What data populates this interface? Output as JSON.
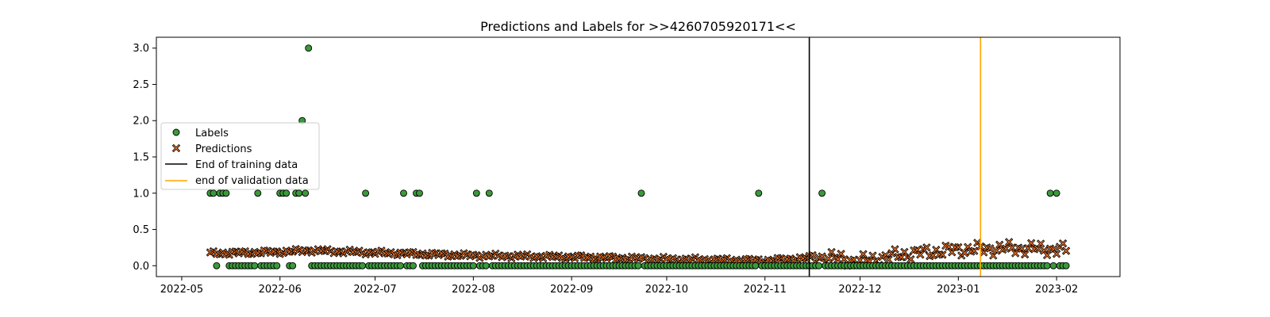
{
  "chart_data": {
    "type": "scatter",
    "title": "Predictions and Labels for >>4260705920171<<",
    "xlabel": "",
    "ylabel": "",
    "xlim": [
      "2022-04-23",
      "2023-02-21"
    ],
    "ylim": [
      -0.15,
      3.15
    ],
    "grid": false,
    "legend_position": "center-left",
    "x_ticks": [
      "2022-05",
      "2022-06",
      "2022-07",
      "2022-08",
      "2022-09",
      "2022-10",
      "2022-11",
      "2022-12",
      "2023-01",
      "2023-02"
    ],
    "y_ticks": [
      "0.0",
      "0.5",
      "1.0",
      "1.5",
      "2.0",
      "2.5",
      "3.0"
    ],
    "date_range": [
      "2022-05-10",
      "2023-02-04"
    ],
    "labels_nonzero": [
      {
        "x": "2022-05-10",
        "y": 1
      },
      {
        "x": "2022-05-11",
        "y": 1
      },
      {
        "x": "2022-05-13",
        "y": 1
      },
      {
        "x": "2022-05-14",
        "y": 1
      },
      {
        "x": "2022-05-15",
        "y": 1
      },
      {
        "x": "2022-05-25",
        "y": 1
      },
      {
        "x": "2022-06-01",
        "y": 1
      },
      {
        "x": "2022-06-02",
        "y": 1
      },
      {
        "x": "2022-06-03",
        "y": 1
      },
      {
        "x": "2022-06-06",
        "y": 1
      },
      {
        "x": "2022-06-07",
        "y": 1
      },
      {
        "x": "2022-06-08",
        "y": 2
      },
      {
        "x": "2022-06-09",
        "y": 1
      },
      {
        "x": "2022-06-10",
        "y": 3
      },
      {
        "x": "2022-06-28",
        "y": 1
      },
      {
        "x": "2022-07-10",
        "y": 1
      },
      {
        "x": "2022-07-14",
        "y": 1
      },
      {
        "x": "2022-07-15",
        "y": 1
      },
      {
        "x": "2022-08-02",
        "y": 1
      },
      {
        "x": "2022-08-06",
        "y": 1
      },
      {
        "x": "2022-09-23",
        "y": 1
      },
      {
        "x": "2022-10-30",
        "y": 1
      },
      {
        "x": "2022-11-19",
        "y": 1
      },
      {
        "x": "2023-01-30",
        "y": 1
      },
      {
        "x": "2023-02-01",
        "y": 1
      }
    ],
    "labels_zero_note": "All other dates between 2022-05-10 and 2023-02-04 have label 0",
    "prediction_trend": [
      {
        "x": "2022-05-10",
        "y": 0.17
      },
      {
        "x": "2022-06-01",
        "y": 0.19
      },
      {
        "x": "2022-06-10",
        "y": 0.21
      },
      {
        "x": "2022-07-01",
        "y": 0.18
      },
      {
        "x": "2022-08-01",
        "y": 0.14
      },
      {
        "x": "2022-09-01",
        "y": 0.12
      },
      {
        "x": "2022-10-01",
        "y": 0.09
      },
      {
        "x": "2022-11-01",
        "y": 0.07
      },
      {
        "x": "2022-11-20",
        "y": 0.12
      },
      {
        "x": "2022-12-01",
        "y": 0.06
      },
      {
        "x": "2022-12-15",
        "y": 0.16
      },
      {
        "x": "2023-01-01",
        "y": 0.22
      },
      {
        "x": "2023-01-20",
        "y": 0.24
      },
      {
        "x": "2023-02-04",
        "y": 0.22
      }
    ],
    "vlines": [
      {
        "name": "End of training data",
        "x": "2022-11-15",
        "color": "#000000"
      },
      {
        "name": "end of validation data",
        "x": "2023-01-08",
        "color": "#ffa500"
      }
    ],
    "series": [
      {
        "name": "Labels",
        "marker": "circle",
        "color": "#3a9a3a"
      },
      {
        "name": "Predictions",
        "marker": "x",
        "color": "#ef7426"
      }
    ],
    "legend": [
      "Labels",
      "Predictions",
      "End of training data",
      "end of validation data"
    ]
  }
}
